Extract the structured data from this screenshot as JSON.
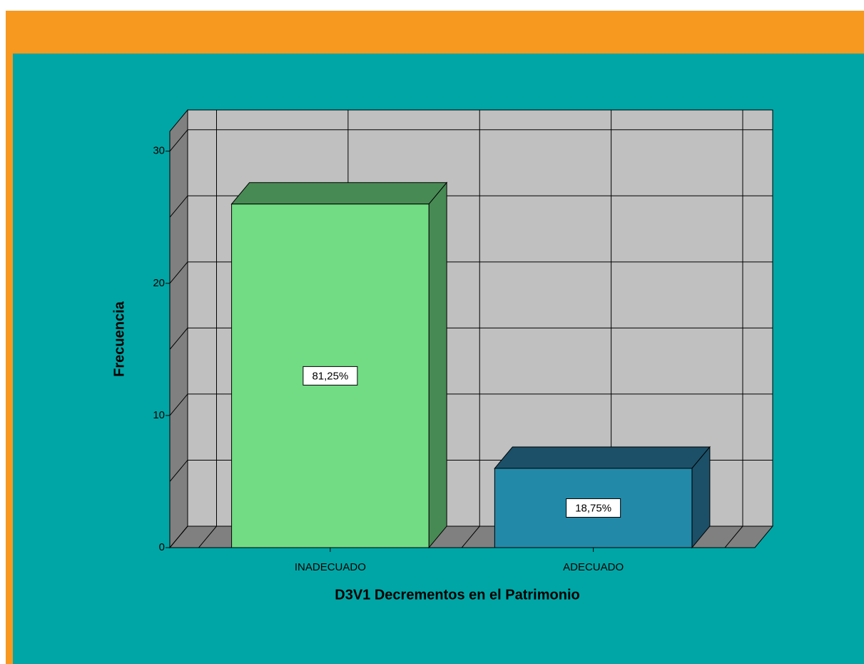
{
  "chart_data": {
    "type": "bar3d",
    "categories": [
      "INADECUADO",
      "ADECUADO"
    ],
    "values": [
      26,
      6
    ],
    "colors": [
      "#72dc84",
      "#2389a8"
    ],
    "side_colors": [
      "#478a54",
      "#1b5068"
    ],
    "percentages": [
      81.25,
      18.75
    ],
    "percentage_labels": [
      "81,25%",
      "18,75%"
    ],
    "ylabel": "Frecuencia",
    "xlabel": "D3V1 Decrementos en el Patrimonio",
    "ylim": [
      0,
      31.5
    ],
    "yticks": [
      0,
      10,
      20,
      30
    ],
    "ygrid": [
      0,
      5,
      10,
      15,
      20,
      25,
      30
    ],
    "grid": true
  }
}
